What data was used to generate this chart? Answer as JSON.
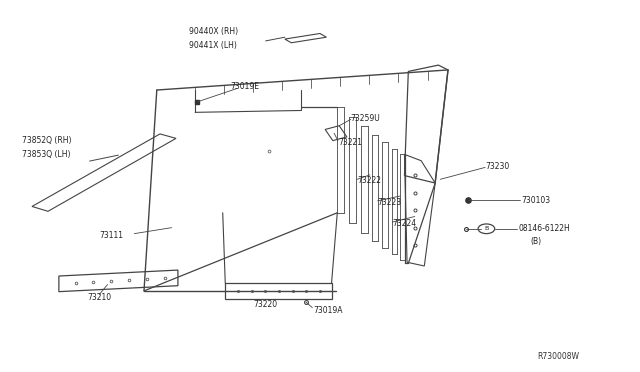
{
  "bg_color": "#ffffff",
  "line_color": "#444444",
  "text_color": "#222222",
  "ref_number": "R730008W",
  "labels": {
    "90440X_RH": "90440X (RH)",
    "90441X_LH": "90441X (LH)",
    "73019E": "73019E",
    "73852Q_RH": "73852Q (RH)",
    "73853Q_LH": "73853Q (LH)",
    "73111": "73111",
    "73230": "73230",
    "730103": "730103",
    "08146_6122H": "08146-6122H",
    "B_parens": "(B)",
    "73224": "73224",
    "73223": "73223",
    "73222": "73222",
    "73221": "73221",
    "73259U": "73259U",
    "73019A": "73019A",
    "73220": "73220",
    "73210": "73210"
  }
}
